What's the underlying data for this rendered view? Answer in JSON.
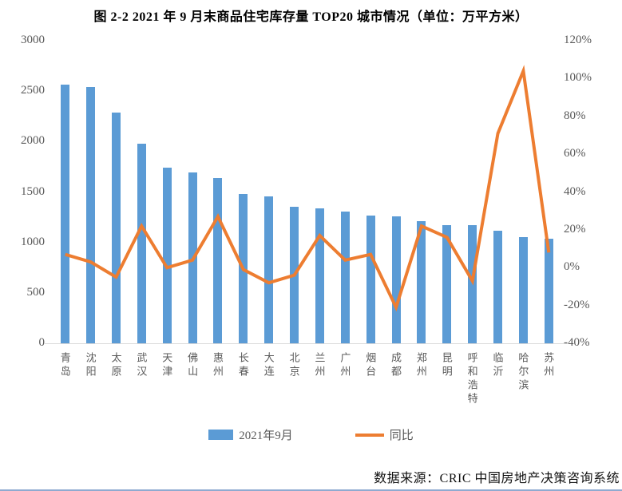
{
  "title": "图 2-2 2021 年 9 月末商品住宅库存量 TOP20 城市情况（单位：万平方米）",
  "legend": {
    "bar_label": "2021年9月",
    "line_label": "同比"
  },
  "source_note": "数据来源：CRIC 中国房地产决策咨询系统",
  "colors": {
    "bar": "#5B9BD5",
    "line": "#ED7D31",
    "axis_text": "#595959",
    "baseline": "#D9D9D9",
    "bottom_rule": "#8FAAD0"
  },
  "chart_data": {
    "type": "bar",
    "subtype": "bar+line-dual-axis",
    "title": "图 2-2 2021 年 9 月末商品住宅库存量 TOP20 城市情况（单位：万平方米）",
    "categories": [
      "青岛",
      "沈阳",
      "太原",
      "武汉",
      "天津",
      "佛山",
      "惠州",
      "长春",
      "大连",
      "北京",
      "兰州",
      "广州",
      "烟台",
      "成都",
      "郑州",
      "昆明",
      "呼和浩特",
      "临沂",
      "哈尔滨",
      "苏州"
    ],
    "series": [
      {
        "name": "2021年9月",
        "type": "bar",
        "axis": "left",
        "unit": "万平方米",
        "values": [
          2565,
          2540,
          2290,
          1980,
          1745,
          1690,
          1640,
          1480,
          1455,
          1350,
          1335,
          1305,
          1270,
          1255,
          1210,
          1175,
          1170,
          1120,
          1050,
          1035
        ]
      },
      {
        "name": "同比",
        "type": "line",
        "axis": "right",
        "unit": "%",
        "values": [
          7,
          3,
          -5,
          22,
          0,
          4,
          27,
          -1,
          -8,
          -4,
          17,
          4,
          7,
          -21,
          22,
          16,
          -7,
          71,
          104,
          8
        ]
      }
    ],
    "left_axis": {
      "min": 0,
      "max": 3000,
      "tick_values": [
        3000,
        2500,
        2000,
        1500,
        1000,
        500,
        0
      ],
      "tick_labels": [
        "3000",
        "2500",
        "2000",
        "1500",
        "1000",
        "500",
        "0"
      ]
    },
    "right_axis": {
      "min": -40,
      "max": 120,
      "tick_values": [
        120,
        100,
        80,
        60,
        40,
        20,
        0,
        -20,
        -40
      ],
      "tick_labels": [
        "120%",
        "100%",
        "80%",
        "60%",
        "40%",
        "20%",
        "0%",
        "-20%",
        "-40%"
      ]
    },
    "grid": false,
    "legend_position": "bottom"
  }
}
